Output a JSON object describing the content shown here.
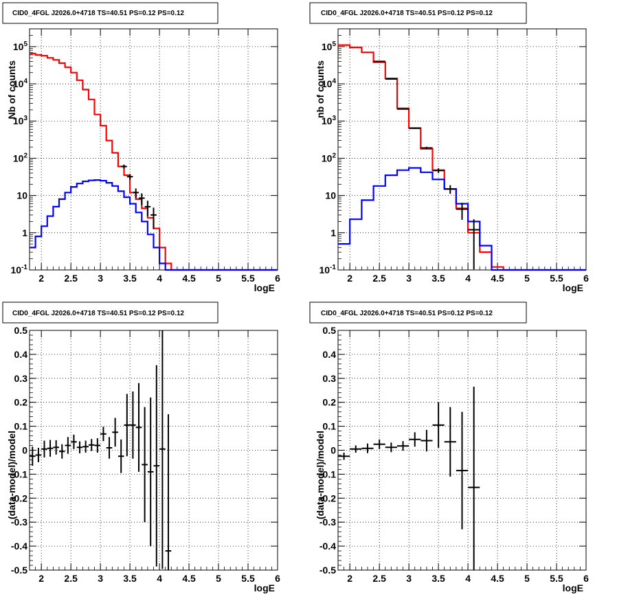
{
  "chart_data": [
    {
      "type": "line",
      "title": "CID0_4FGL J2026.0+4718 TS=40.51 PS=0.12 PS=0.12",
      "xlabel": "logE",
      "ylabel": "Nb of counts",
      "y_scale": "log",
      "xlim": [
        1.8,
        6
      ],
      "ylim": [
        0.1,
        300000
      ],
      "grid": true,
      "x_ticks": [
        "2",
        "2.5",
        "3",
        "3.5",
        "4",
        "4.5",
        "5",
        "5.5",
        "6"
      ],
      "y_ticks": [
        "10^-1",
        "1",
        "10",
        "10^2",
        "10^3",
        "10^4",
        "10^5"
      ],
      "bin_edges": [
        1.8,
        1.9,
        2.0,
        2.1,
        2.2,
        2.3,
        2.4,
        2.5,
        2.6,
        2.7,
        2.8,
        2.9,
        3.0,
        3.1,
        3.2,
        3.3,
        3.4,
        3.5,
        3.6,
        3.7,
        3.8,
        3.9,
        4.0,
        4.1,
        4.2,
        4.3,
        4.4,
        4.5,
        4.6,
        4.7,
        4.8,
        4.9,
        5.0,
        5.1,
        5.2,
        5.3,
        5.4,
        5.5,
        5.6,
        5.7,
        5.8,
        5.9,
        6.0
      ],
      "series": [
        {
          "color": "#ff0000",
          "values": [
            65000,
            60000,
            57000,
            50000,
            44000,
            36000,
            28000,
            20000,
            12500,
            7000,
            3800,
            1500,
            750,
            300,
            140,
            60,
            35,
            12,
            8,
            4.5,
            2.5,
            1.3,
            0.4,
            0.15,
            0.1,
            0.1,
            0.1,
            0.1,
            0.1,
            0.1,
            0.1,
            0.1,
            0.1,
            0.1,
            0.1,
            0.1,
            0.1,
            0.1,
            0.1,
            0.1,
            0.1,
            0.1
          ]
        },
        {
          "color": "#0000ff",
          "values": [
            0.4,
            0.8,
            1.5,
            2.8,
            5,
            8,
            12,
            17,
            21,
            24,
            25.5,
            26,
            25,
            22,
            18,
            13,
            9,
            6,
            3.5,
            2,
            0.9,
            0.4,
            0.15,
            0.1,
            0.1,
            0.1,
            0.1,
            0.1,
            0.1,
            0.1,
            0.1,
            0.1,
            0.1,
            0.1,
            0.1,
            0.1,
            0.1,
            0.1,
            0.1,
            0.1,
            0.1,
            0.1
          ]
        }
      ],
      "data_points": {
        "color": "#000000",
        "x": [
          3.4,
          3.5,
          3.6,
          3.7,
          3.8,
          3.9
        ],
        "y": [
          60,
          32,
          12,
          8.5,
          5,
          3
        ]
      }
    },
    {
      "type": "line",
      "title": "CID0_4FGL J2026.0+4718 TS=40.51 PS=0.12 PS=0.12",
      "xlabel": "logE",
      "ylabel": "nb of counts",
      "y_scale": "log",
      "xlim": [
        1.8,
        6
      ],
      "ylim": [
        0.1,
        300000
      ],
      "grid": true,
      "x_ticks": [
        "2",
        "2.5",
        "3",
        "3.5",
        "4",
        "4.5",
        "5",
        "5.5",
        "6"
      ],
      "y_ticks": [
        "10^-1",
        "1",
        "10",
        "10^2",
        "10^3",
        "10^4",
        "10^5"
      ],
      "bin_edges": [
        1.8,
        2.0,
        2.2,
        2.4,
        2.6,
        2.8,
        3.0,
        3.2,
        3.4,
        3.6,
        3.8,
        4.0,
        4.2,
        4.4,
        4.6,
        4.8,
        5.0,
        5.2,
        5.4,
        5.6,
        5.8,
        6.0
      ],
      "series": [
        {
          "color": "#ff0000",
          "values": [
            110000,
            95000,
            70000,
            38000,
            14000,
            2200,
            650,
            180,
            48,
            15,
            4.5,
            1,
            0.3,
            0.12,
            0.1,
            0.1,
            0.1,
            0.1,
            0.1,
            0.1,
            0.1
          ]
        },
        {
          "color": "#0000ff",
          "values": [
            0.5,
            2.3,
            7.5,
            18,
            35,
            48,
            55,
            42,
            27,
            15,
            6,
            2,
            0.45,
            0.1,
            0.1,
            0.1,
            0.1,
            0.1,
            0.1,
            0.1,
            0.1
          ]
        }
      ],
      "data_points": {
        "color": "#000000",
        "x": [
          2.5,
          2.7,
          2.9,
          3.1,
          3.3,
          3.5,
          3.7,
          3.9,
          4.1
        ],
        "y": [
          40000,
          13500,
          2100,
          640,
          190,
          47,
          15,
          4.3,
          1.2
        ]
      }
    },
    {
      "type": "scatter",
      "title": "CID0_4FGL J2026.0+4718 TS=40.51 PS=0.12 PS=0.12",
      "xlabel": "logE",
      "ylabel": "(data-model)/model",
      "xlim": [
        1.8,
        6
      ],
      "ylim": [
        -0.5,
        0.5
      ],
      "grid": true,
      "x_ticks": [
        "2",
        "2.5",
        "3",
        "3.5",
        "4",
        "4.5",
        "5",
        "5.5",
        "6"
      ],
      "y_ticks": [
        "-0.5",
        "-0.4",
        "-0.3",
        "-0.2",
        "-0.1",
        "0",
        "0.1",
        "0.2",
        "0.3",
        "0.4",
        "0.5"
      ],
      "x_halfwidth": 0.05,
      "points": [
        {
          "x": 1.85,
          "y": -0.025,
          "err": 0.04
        },
        {
          "x": 1.95,
          "y": -0.02,
          "err": 0.03
        },
        {
          "x": 2.05,
          "y": 0.005,
          "err": 0.035
        },
        {
          "x": 2.15,
          "y": 0.008,
          "err": 0.035
        },
        {
          "x": 2.25,
          "y": 0.012,
          "err": 0.03
        },
        {
          "x": 2.35,
          "y": -0.005,
          "err": 0.03
        },
        {
          "x": 2.45,
          "y": 0.02,
          "err": 0.035
        },
        {
          "x": 2.55,
          "y": 0.035,
          "err": 0.03
        },
        {
          "x": 2.65,
          "y": 0.012,
          "err": 0.025
        },
        {
          "x": 2.75,
          "y": 0.015,
          "err": 0.025
        },
        {
          "x": 2.85,
          "y": 0.022,
          "err": 0.025
        },
        {
          "x": 2.95,
          "y": 0.02,
          "err": 0.03
        },
        {
          "x": 3.05,
          "y": 0.068,
          "err": 0.03
        },
        {
          "x": 3.15,
          "y": 0.01,
          "err": 0.045
        },
        {
          "x": 3.25,
          "y": 0.075,
          "err": 0.06
        },
        {
          "x": 3.35,
          "y": -0.025,
          "err": 0.07
        },
        {
          "x": 3.45,
          "y": 0.105,
          "err": 0.13
        },
        {
          "x": 3.55,
          "y": 0.105,
          "err": 0.14
        },
        {
          "x": 3.65,
          "y": 0.095,
          "err": 0.185
        },
        {
          "x": 3.75,
          "y": -0.06,
          "err": 0.24
        },
        {
          "x": 3.85,
          "y": -0.09,
          "err": 0.31
        },
        {
          "x": 3.95,
          "y": -0.065,
          "err": 0.42
        },
        {
          "x": 4.05,
          "y": 0.005,
          "err": 0.5
        },
        {
          "x": 4.15,
          "y": -0.42,
          "err": 0.57
        }
      ]
    },
    {
      "type": "scatter",
      "title": "CID0_4FGL J2026.0+4718 TS=40.51 PS=0.12 PS=0.12",
      "xlabel": "logE",
      "ylabel": "(data-model)/model",
      "xlim": [
        1.8,
        6
      ],
      "ylim": [
        -0.5,
        0.5
      ],
      "grid": true,
      "x_ticks": [
        "2",
        "2.5",
        "3",
        "3.5",
        "4",
        "4.5",
        "5",
        "5.5",
        "6"
      ],
      "y_ticks": [
        "-0.5",
        "-0.4",
        "-0.3",
        "-0.2",
        "-0.1",
        "0",
        "0.1",
        "0.2",
        "0.3",
        "0.4",
        "0.5"
      ],
      "x_halfwidth": 0.1,
      "points": [
        {
          "x": 1.9,
          "y": -0.025,
          "err": 0.015
        },
        {
          "x": 2.1,
          "y": 0.005,
          "err": 0.015
        },
        {
          "x": 2.3,
          "y": 0.008,
          "err": 0.02
        },
        {
          "x": 2.5,
          "y": 0.025,
          "err": 0.02
        },
        {
          "x": 2.7,
          "y": 0.012,
          "err": 0.02
        },
        {
          "x": 2.9,
          "y": 0.018,
          "err": 0.02
        },
        {
          "x": 3.1,
          "y": 0.045,
          "err": 0.03
        },
        {
          "x": 3.3,
          "y": 0.04,
          "err": 0.045
        },
        {
          "x": 3.5,
          "y": 0.105,
          "err": 0.095
        },
        {
          "x": 3.7,
          "y": 0.035,
          "err": 0.145
        },
        {
          "x": 3.9,
          "y": -0.085,
          "err": 0.245
        },
        {
          "x": 4.1,
          "y": -0.155,
          "err": 0.42
        }
      ]
    }
  ]
}
